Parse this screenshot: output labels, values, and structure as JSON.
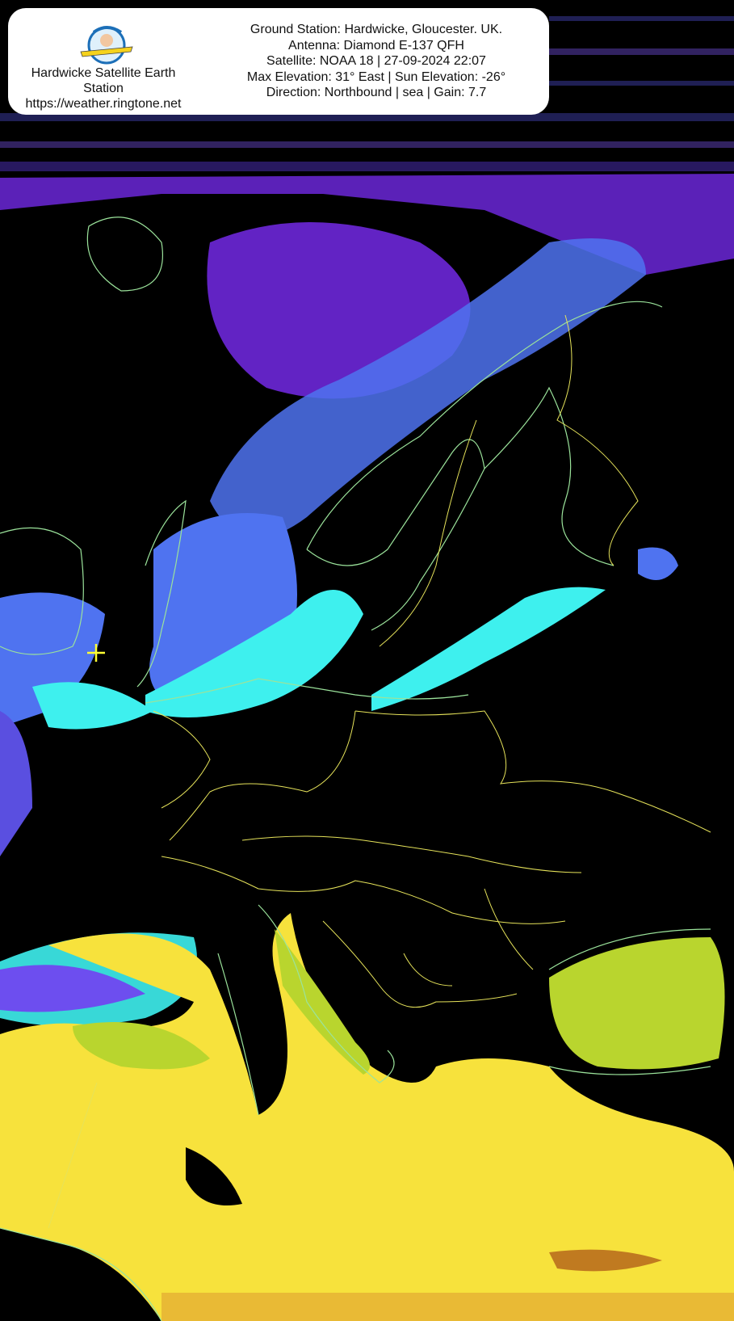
{
  "header": {
    "station_name": "Hardwicke Satellite Earth Station",
    "url": "https://weather.ringtone.net",
    "lines": [
      "Ground Station: Hardwicke, Gloucester. UK.",
      "Antenna: Diamond E-137 QFH",
      "Satellite: NOAA 18 | 27-09-2024 22:07",
      "Max Elevation: 31° East | Sun Elevation: -26°",
      "Direction: Northbound | sea | Gain: 7.7"
    ]
  },
  "map": {
    "colors": {
      "background": "#000000",
      "cloud_cold": "#7a2cf5",
      "cloud_mid": "#3f7cf0",
      "cloud_low": "#3ef0ee",
      "sea_warm": "#f7e23c",
      "sea_mid": "#b9d52e",
      "coastline": "#9be39b",
      "borders": "#e6e35a",
      "marker": "#ffff33"
    },
    "marker_icon": "crosshair-icon"
  }
}
